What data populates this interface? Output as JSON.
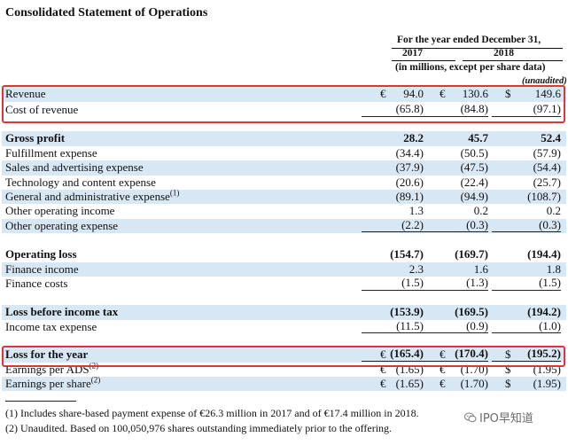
{
  "document": {
    "title": "Consolidated Statement of Operations"
  },
  "header": {
    "period": "For the year ended December 31,",
    "years": [
      "2017",
      "2018"
    ],
    "units": "(in millions, except per share data)",
    "unaudited": "(unaudited)"
  },
  "rows": [
    {
      "label": "Revenue",
      "bold": false,
      "shaded": true,
      "c1": "€",
      "v1": "94.0",
      "c2": "€",
      "v2": "130.6",
      "c3": "$",
      "v3": "149.6",
      "underline": false
    },
    {
      "label": "Cost of revenue",
      "bold": false,
      "shaded": false,
      "c1": "",
      "v1": "(65.8)",
      "c2": "",
      "v2": "(84.8)",
      "c3": "",
      "v3": "(97.1)",
      "underline": true
    },
    {
      "label": "Gross profit",
      "bold": true,
      "shaded": true,
      "c1": "",
      "v1": "28.2",
      "c2": "",
      "v2": "45.7",
      "c3": "",
      "v3": "52.4",
      "underline": false
    },
    {
      "label": "Fulfillment expense",
      "bold": false,
      "shaded": false,
      "c1": "",
      "v1": "(34.4)",
      "c2": "",
      "v2": "(50.5)",
      "c3": "",
      "v3": "(57.9)",
      "underline": false
    },
    {
      "label": "Sales and advertising expense",
      "bold": false,
      "shaded": true,
      "c1": "",
      "v1": "(37.9)",
      "c2": "",
      "v2": "(47.5)",
      "c3": "",
      "v3": "(54.4)",
      "underline": false
    },
    {
      "label": "Technology and content expense",
      "bold": false,
      "shaded": false,
      "c1": "",
      "v1": "(20.6)",
      "c2": "",
      "v2": "(22.4)",
      "c3": "",
      "v3": "(25.7)",
      "underline": false
    },
    {
      "label": "General and administrative expense",
      "sup": "(1)",
      "bold": false,
      "shaded": true,
      "c1": "",
      "v1": "(89.1)",
      "c2": "",
      "v2": "(94.9)",
      "c3": "",
      "v3": "(108.7)",
      "underline": false
    },
    {
      "label": "Other operating income",
      "bold": false,
      "shaded": false,
      "c1": "",
      "v1": "1.3",
      "c2": "",
      "v2": "0.2",
      "c3": "",
      "v3": "0.2",
      "underline": false
    },
    {
      "label": "Other operating expense",
      "bold": false,
      "shaded": true,
      "c1": "",
      "v1": "(2.2)",
      "c2": "",
      "v2": "(0.3)",
      "c3": "",
      "v3": "(0.3)",
      "underline": true
    },
    {
      "label": "Operating loss",
      "bold": true,
      "shaded": false,
      "c1": "",
      "v1": "(154.7)",
      "c2": "",
      "v2": "(169.7)",
      "c3": "",
      "v3": "(194.4)",
      "underline": false
    },
    {
      "label": "Finance income",
      "bold": false,
      "shaded": true,
      "c1": "",
      "v1": "2.3",
      "c2": "",
      "v2": "1.6",
      "c3": "",
      "v3": "1.8",
      "underline": false
    },
    {
      "label": "Finance costs",
      "bold": false,
      "shaded": false,
      "c1": "",
      "v1": "(1.5)",
      "c2": "",
      "v2": "(1.3)",
      "c3": "",
      "v3": "(1.5)",
      "underline": true
    },
    {
      "label": "Loss before income tax",
      "bold": true,
      "shaded": true,
      "c1": "",
      "v1": "(153.9)",
      "c2": "",
      "v2": "(169.5)",
      "c3": "",
      "v3": "(194.2)",
      "underline": false
    },
    {
      "label": "Income tax expense",
      "bold": false,
      "shaded": false,
      "c1": "",
      "v1": "(11.5)",
      "c2": "",
      "v2": "(0.9)",
      "c3": "",
      "v3": "(1.0)",
      "underline": true
    },
    {
      "label": "Loss for the year",
      "bold": true,
      "shaded": true,
      "c1": "€",
      "v1": "(165.4)",
      "c2": "€",
      "v2": "(170.4)",
      "c3": "$",
      "v3": "(195.2)",
      "underline": true
    },
    {
      "label": "Earnings per ADS",
      "sup": "(2)",
      "bold": false,
      "shaded": false,
      "c1": "€",
      "v1": "(1.65)",
      "c2": "€",
      "v2": "(1.70)",
      "c3": "$",
      "v3": "(1.95)",
      "underline": false
    },
    {
      "label": "Earnings per share",
      "sup": "(2)",
      "bold": false,
      "shaded": true,
      "c1": "€",
      "v1": "(1.65)",
      "c2": "€",
      "v2": "(1.70)",
      "c3": "$",
      "v3": "(1.95)",
      "underline": false
    }
  ],
  "footnotes": [
    "(1)  Includes share-based payment expense of €26.3 million in 2017 and of €17.4 million in 2018.",
    "(2)  Unaudited. Based on 100,050,976 shares outstanding immediately prior to the offering."
  ],
  "watermark": {
    "text": "IPO早知道",
    "icon": "wechat-icon"
  },
  "colors": {
    "shade": "#d8e7f4",
    "highlight": "#d9383a"
  }
}
